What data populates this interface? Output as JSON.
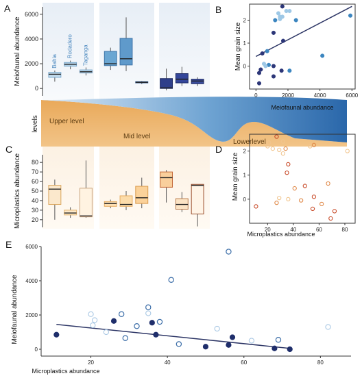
{
  "figure": {
    "panel_letters": [
      "A",
      "B",
      "C",
      "D",
      "E"
    ],
    "levels_axis_label": "levels",
    "level_names": [
      "Upper level",
      "Mid level",
      "Lowerlevel"
    ],
    "site_names": [
      "Bahia",
      "Rodadero",
      "Taganga"
    ]
  },
  "colors": {
    "upper_light": "#c8e0f0",
    "upper_mid": "#6aa6d2",
    "upper_dark": "#3c6ea8",
    "lower_dark": "#2f3f8a",
    "ocean_light": "#d7e8f5",
    "ocean_dark": "#2e6fb0",
    "sand": "#e7a85a",
    "mp_light": "#f4d9b0",
    "mp_mid": "#e6b06a",
    "mp_dark": "#c8642f",
    "line": "#2c3565"
  },
  "chart_data": [
    {
      "id": "A",
      "type": "box",
      "ylabel": "Meiofaunal abundance",
      "yticks": [
        0,
        2000,
        4000,
        6000
      ],
      "ylim": [
        -600,
        6600
      ],
      "groups": [
        {
          "level": "Upper level",
          "boxes": [
            {
              "site": "Bahia",
              "min": 550,
              "q1": 900,
              "median": 1150,
              "q3": 1300,
              "max": 1450
            },
            {
              "site": "Rodadero",
              "min": 1550,
              "q1": 1800,
              "median": 1950,
              "q3": 2100,
              "max": 2250
            },
            {
              "site": "Taganga",
              "min": 1050,
              "q1": 1250,
              "median": 1350,
              "q3": 1500,
              "max": 1700
            }
          ]
        },
        {
          "level": "Mid level",
          "boxes": [
            {
              "site": "Bahia",
              "min": 1500,
              "q1": 1850,
              "median": 2000,
              "q3": 3000,
              "max": 3300
            },
            {
              "site": "Rodadero",
              "min": 1400,
              "q1": 1900,
              "median": 2400,
              "q3": 4050,
              "max": 5750
            },
            {
              "site": "Taganga",
              "min": 350,
              "q1": 450,
              "median": 500,
              "q3": 550,
              "max": 600
            }
          ]
        },
        {
          "level": "Lowerlevel",
          "boxes": [
            {
              "site": "Bahia",
              "min": -150,
              "q1": 0,
              "median": 50,
              "q3": 800,
              "max": 1600
            },
            {
              "site": "Rodadero",
              "min": 200,
              "q1": 450,
              "median": 750,
              "q3": 1200,
              "max": 1750
            },
            {
              "site": "Taganga",
              "min": 200,
              "q1": 380,
              "median": 600,
              "q3": 750,
              "max": 900
            }
          ]
        }
      ]
    },
    {
      "id": "B",
      "type": "scatter",
      "xlabel": "Meiofaunal abundance",
      "ylabel": "Mean grain size",
      "xticks": [
        0,
        2000,
        4000,
        6000
      ],
      "yticks": [
        0,
        1,
        2
      ],
      "xlim": [
        -400,
        6200
      ],
      "ylim": [
        -1.0,
        2.7
      ],
      "trend": {
        "x": [
          0,
          6000
        ],
        "y": [
          0.42,
          2.6
        ]
      },
      "points": [
        {
          "x": 1650,
          "y": 2.6,
          "tone": "dark"
        },
        {
          "x": 1900,
          "y": 2.4,
          "tone": "light"
        },
        {
          "x": 2100,
          "y": 2.4,
          "tone": "light"
        },
        {
          "x": 1400,
          "y": 2.3,
          "tone": "light"
        },
        {
          "x": 1500,
          "y": 2.15,
          "tone": "light"
        },
        {
          "x": 1650,
          "y": 2.15,
          "tone": "light"
        },
        {
          "x": 1200,
          "y": 2.0,
          "tone": "mid"
        },
        {
          "x": 1500,
          "y": 2.05,
          "tone": "light"
        },
        {
          "x": 2500,
          "y": 2.0,
          "tone": "mid"
        },
        {
          "x": 5900,
          "y": 2.2,
          "tone": "mid"
        },
        {
          "x": 1100,
          "y": 1.45,
          "tone": "dark"
        },
        {
          "x": 1700,
          "y": 1.1,
          "tone": "dark"
        },
        {
          "x": 700,
          "y": 0.65,
          "tone": "mid"
        },
        {
          "x": 400,
          "y": 0.55,
          "tone": "dark"
        },
        {
          "x": 4150,
          "y": 0.45,
          "tone": "mid"
        },
        {
          "x": 500,
          "y": 0.1,
          "tone": "light"
        },
        {
          "x": 800,
          "y": 0.05,
          "tone": "mid"
        },
        {
          "x": 600,
          "y": 0.0,
          "tone": "light"
        },
        {
          "x": 1100,
          "y": 0.0,
          "tone": "dark"
        },
        {
          "x": 300,
          "y": -0.15,
          "tone": "dark"
        },
        {
          "x": 1600,
          "y": -0.2,
          "tone": "dark"
        },
        {
          "x": 2100,
          "y": -0.2,
          "tone": "mid"
        },
        {
          "x": 200,
          "y": -0.3,
          "tone": "dark"
        },
        {
          "x": 1100,
          "y": -0.45,
          "tone": "dark"
        },
        {
          "x": 200,
          "y": -0.75,
          "tone": "dark"
        }
      ]
    },
    {
      "id": "C",
      "type": "box",
      "ylabel": "Microplastics abundance",
      "yticks": [
        20,
        30,
        40,
        50,
        60,
        70,
        80
      ],
      "ylim": [
        12,
        88
      ],
      "groups": [
        {
          "level": "Upper level",
          "boxes": [
            {
              "min": 20,
              "q1": 36,
              "median": 52,
              "q3": 56,
              "max": 62
            },
            {
              "min": 22,
              "q1": 25,
              "median": 27,
              "q3": 30,
              "max": 33
            },
            {
              "min": 22,
              "q1": 23,
              "median": 24,
              "q3": 53,
              "max": 82
            }
          ]
        },
        {
          "level": "Mid level",
          "boxes": [
            {
              "min": 32,
              "q1": 34,
              "median": 37,
              "q3": 39,
              "max": 41
            },
            {
              "min": 30,
              "q1": 34,
              "median": 36,
              "q3": 45,
              "max": 50
            },
            {
              "min": 32,
              "q1": 37,
              "median": 43,
              "q3": 55,
              "max": 64
            }
          ]
        },
        {
          "level": "Lowerlevel",
          "boxes": [
            {
              "min": 38,
              "q1": 54,
              "median": 64,
              "q3": 70,
              "max": 72
            },
            {
              "min": 28,
              "q1": 31,
              "median": 36,
              "q3": 42,
              "max": 49
            },
            {
              "min": 13,
              "q1": 26,
              "median": 56,
              "q3": 57,
              "max": 57
            }
          ]
        }
      ]
    },
    {
      "id": "D",
      "type": "scatter",
      "xlabel": "Microplastics abundance",
      "ylabel": "Mean grain size",
      "xticks": [
        20,
        40,
        60,
        80
      ],
      "yticks": [
        0,
        1,
        2
      ],
      "xlim": [
        6,
        88
      ],
      "ylim": [
        -1.0,
        2.7
      ],
      "points": [
        {
          "x": 27,
          "y": 2.6,
          "tone": "dark"
        },
        {
          "x": 21,
          "y": 2.35,
          "tone": "light"
        },
        {
          "x": 32,
          "y": 2.4,
          "tone": "light"
        },
        {
          "x": 20,
          "y": 2.2,
          "tone": "light"
        },
        {
          "x": 24,
          "y": 2.1,
          "tone": "light"
        },
        {
          "x": 29,
          "y": 2.05,
          "tone": "light"
        },
        {
          "x": 34,
          "y": 2.1,
          "tone": "mid"
        },
        {
          "x": 53,
          "y": 2.2,
          "tone": "light"
        },
        {
          "x": 56,
          "y": 2.25,
          "tone": "mid"
        },
        {
          "x": 82,
          "y": 2.0,
          "tone": "light"
        },
        {
          "x": 32,
          "y": 1.9,
          "tone": "light"
        },
        {
          "x": 36,
          "y": 1.45,
          "tone": "dark"
        },
        {
          "x": 35,
          "y": 1.1,
          "tone": "dark"
        },
        {
          "x": 67,
          "y": 0.65,
          "tone": "mid"
        },
        {
          "x": 49,
          "y": 0.55,
          "tone": "dark"
        },
        {
          "x": 41,
          "y": 0.45,
          "tone": "mid"
        },
        {
          "x": 29,
          "y": 0.05,
          "tone": "light"
        },
        {
          "x": 56,
          "y": 0.1,
          "tone": "dark"
        },
        {
          "x": 36,
          "y": 0.0,
          "tone": "light"
        },
        {
          "x": 46,
          "y": -0.05,
          "tone": "mid"
        },
        {
          "x": 27,
          "y": -0.15,
          "tone": "mid"
        },
        {
          "x": 62,
          "y": -0.2,
          "tone": "mid"
        },
        {
          "x": 11,
          "y": -0.3,
          "tone": "dark"
        },
        {
          "x": 55,
          "y": -0.4,
          "tone": "dark"
        },
        {
          "x": 72,
          "y": -0.5,
          "tone": "dark"
        },
        {
          "x": 69,
          "y": -0.8,
          "tone": "dark"
        }
      ]
    },
    {
      "id": "E",
      "type": "scatter",
      "xlabel": "Microplastics abundance",
      "ylabel": "Meiofaunal abundance",
      "xticks": [
        20,
        40,
        60,
        80
      ],
      "yticks": [
        0,
        2000,
        4000,
        6000
      ],
      "xlim": [
        7,
        88
      ],
      "ylim": [
        -400,
        6000
      ],
      "trend": {
        "x": [
          11,
          72
        ],
        "y": [
          1450,
          50
        ]
      },
      "points": [
        {
          "x": 11,
          "y": 850,
          "style": "filled"
        },
        {
          "x": 20,
          "y": 2050,
          "style": "hollow_light"
        },
        {
          "x": 20.5,
          "y": 1400,
          "style": "hollow_light"
        },
        {
          "x": 21,
          "y": 1700,
          "style": "hollow_light"
        },
        {
          "x": 24,
          "y": 1000,
          "style": "hollow_light"
        },
        {
          "x": 26,
          "y": 1650,
          "style": "filled"
        },
        {
          "x": 28,
          "y": 2050,
          "style": "hollow_mid"
        },
        {
          "x": 29,
          "y": 650,
          "style": "hollow_mid"
        },
        {
          "x": 32,
          "y": 1350,
          "style": "hollow_mid"
        },
        {
          "x": 35,
          "y": 2450,
          "style": "hollow_mid"
        },
        {
          "x": 35,
          "y": 2100,
          "style": "hollow_light"
        },
        {
          "x": 36,
          "y": 1550,
          "style": "filled"
        },
        {
          "x": 37,
          "y": 850,
          "style": "filled"
        },
        {
          "x": 38,
          "y": 1600,
          "style": "hollow_mid"
        },
        {
          "x": 41,
          "y": 4050,
          "style": "hollow_mid"
        },
        {
          "x": 43,
          "y": 300,
          "style": "hollow_mid"
        },
        {
          "x": 50,
          "y": 150,
          "style": "filled"
        },
        {
          "x": 53,
          "y": 1200,
          "style": "hollow_light"
        },
        {
          "x": 56,
          "y": 5700,
          "style": "hollow_mid"
        },
        {
          "x": 57,
          "y": 700,
          "style": "filled"
        },
        {
          "x": 56,
          "y": 250,
          "style": "filled"
        },
        {
          "x": 62,
          "y": 500,
          "style": "hollow_light"
        },
        {
          "x": 68,
          "y": 50,
          "style": "filled"
        },
        {
          "x": 69,
          "y": 550,
          "style": "hollow_mid"
        },
        {
          "x": 72,
          "y": 0,
          "style": "filled"
        },
        {
          "x": 82,
          "y": 1300,
          "style": "hollow_light"
        }
      ]
    }
  ]
}
